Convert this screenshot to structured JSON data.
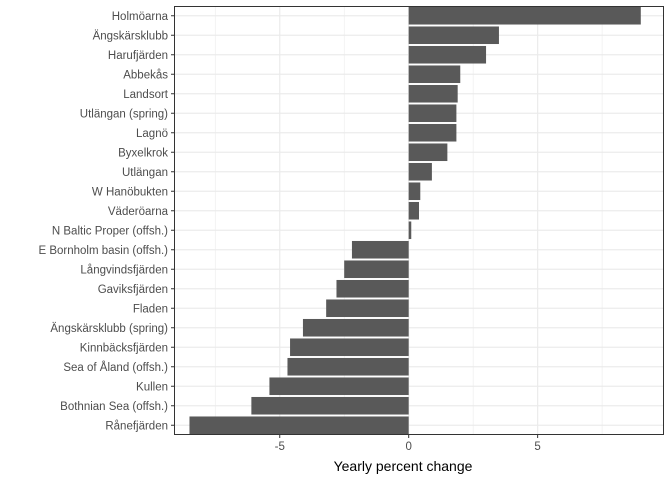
{
  "chart_data": {
    "type": "bar",
    "orientation": "horizontal",
    "title": "",
    "xlabel": "Yearly percent change",
    "ylabel": "",
    "xlim": [
      -9.1,
      9.9
    ],
    "x_ticks": [
      -5,
      0,
      5
    ],
    "x_tick_labels": [
      "-5",
      "0",
      "5"
    ],
    "grid": true,
    "bar_color": "#595959",
    "grid_color": "#ebebeb",
    "categories": [
      "Holmöarna",
      "Ängskärsklubb",
      "Harufjärden",
      "Abbekås",
      "Landsort",
      "Utlängan (spring)",
      "Lagnö",
      "Byxelkrok",
      "Utlängan",
      "W Hanöbukten",
      "Väderöarna",
      "N Baltic Proper (offsh.)",
      "E Bornholm basin (offsh.)",
      "Långvindsfjärden",
      "Gaviksfjärden",
      "Fladen",
      "Ängskärsklubb (spring)",
      "Kinnbäcksfjärden",
      "Sea of Åland (offsh.)",
      "Kullen",
      "Bothnian Sea (offsh.)",
      "Rånefjärden"
    ],
    "values": [
      9.0,
      3.5,
      3.0,
      2.0,
      1.9,
      1.85,
      1.85,
      1.5,
      0.9,
      0.45,
      0.4,
      0.1,
      -2.2,
      -2.5,
      -2.8,
      -3.2,
      -4.1,
      -4.6,
      -4.7,
      -5.4,
      -6.1,
      -8.5
    ]
  }
}
